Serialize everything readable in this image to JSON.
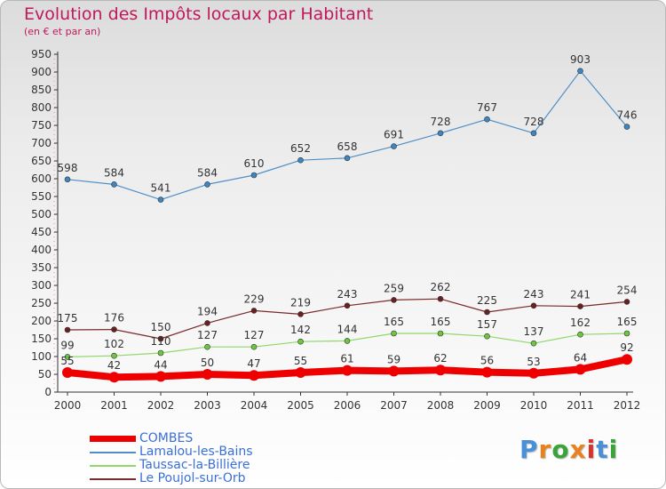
{
  "chart_data": {
    "type": "line",
    "title": "Evolution des Impôts locaux par Habitant",
    "subtitle": "(en € et par an)",
    "categories": [
      "2000",
      "2001",
      "2002",
      "2003",
      "2004",
      "2005",
      "2006",
      "2007",
      "2008",
      "2009",
      "2010",
      "2011",
      "2012"
    ],
    "ylim": [
      0,
      950
    ],
    "yticks": [
      0,
      50,
      100,
      150,
      200,
      250,
      300,
      350,
      400,
      450,
      500,
      550,
      600,
      650,
      700,
      750,
      800,
      850,
      900,
      950
    ],
    "grid": false,
    "legend_position": "bottom-left",
    "series": [
      {
        "name": "Lamalou-les-Bains",
        "color": "#4f8fc7",
        "marker": "#3d86c4",
        "width": 1.2,
        "values": [
          598,
          584,
          541,
          584,
          610,
          652,
          658,
          691,
          728,
          767,
          728,
          903,
          746
        ]
      },
      {
        "name": "Le Poujol-sur-Orb",
        "color": "#7a2a2a",
        "marker": "#6b1f1f",
        "width": 1.2,
        "values": [
          175,
          176,
          150,
          194,
          229,
          219,
          243,
          259,
          262,
          225,
          243,
          241,
          254
        ]
      },
      {
        "name": "Taussac-la-Billière",
        "color": "#8fd86a",
        "marker": "#6cc63e",
        "width": 1.2,
        "values": [
          99,
          102,
          110,
          127,
          127,
          142,
          144,
          165,
          165,
          157,
          137,
          162,
          165
        ]
      },
      {
        "name": "COMBES",
        "color": "#ee0000",
        "marker": "#ee0000",
        "width": 8,
        "values": [
          55,
          42,
          44,
          50,
          47,
          55,
          61,
          59,
          62,
          56,
          53,
          64,
          92
        ]
      }
    ]
  },
  "legend": [
    {
      "label": "COMBES",
      "color": "#ee0000",
      "thickness": 7
    },
    {
      "label": "Lamalou-les-Bains",
      "color": "#4f8fc7",
      "thickness": 2
    },
    {
      "label": "Taussac-la-Billière",
      "color": "#8fd86a",
      "thickness": 2
    },
    {
      "label": "Le Poujol-sur-Orb",
      "color": "#7a2a2a",
      "thickness": 2
    }
  ],
  "logo": {
    "text": "Proxiti",
    "colors": [
      "#4a90d9",
      "#e8821e",
      "#3aa33a",
      "#e8821e",
      "#d9342b",
      "#4a90d9",
      "#3aa33a"
    ]
  }
}
